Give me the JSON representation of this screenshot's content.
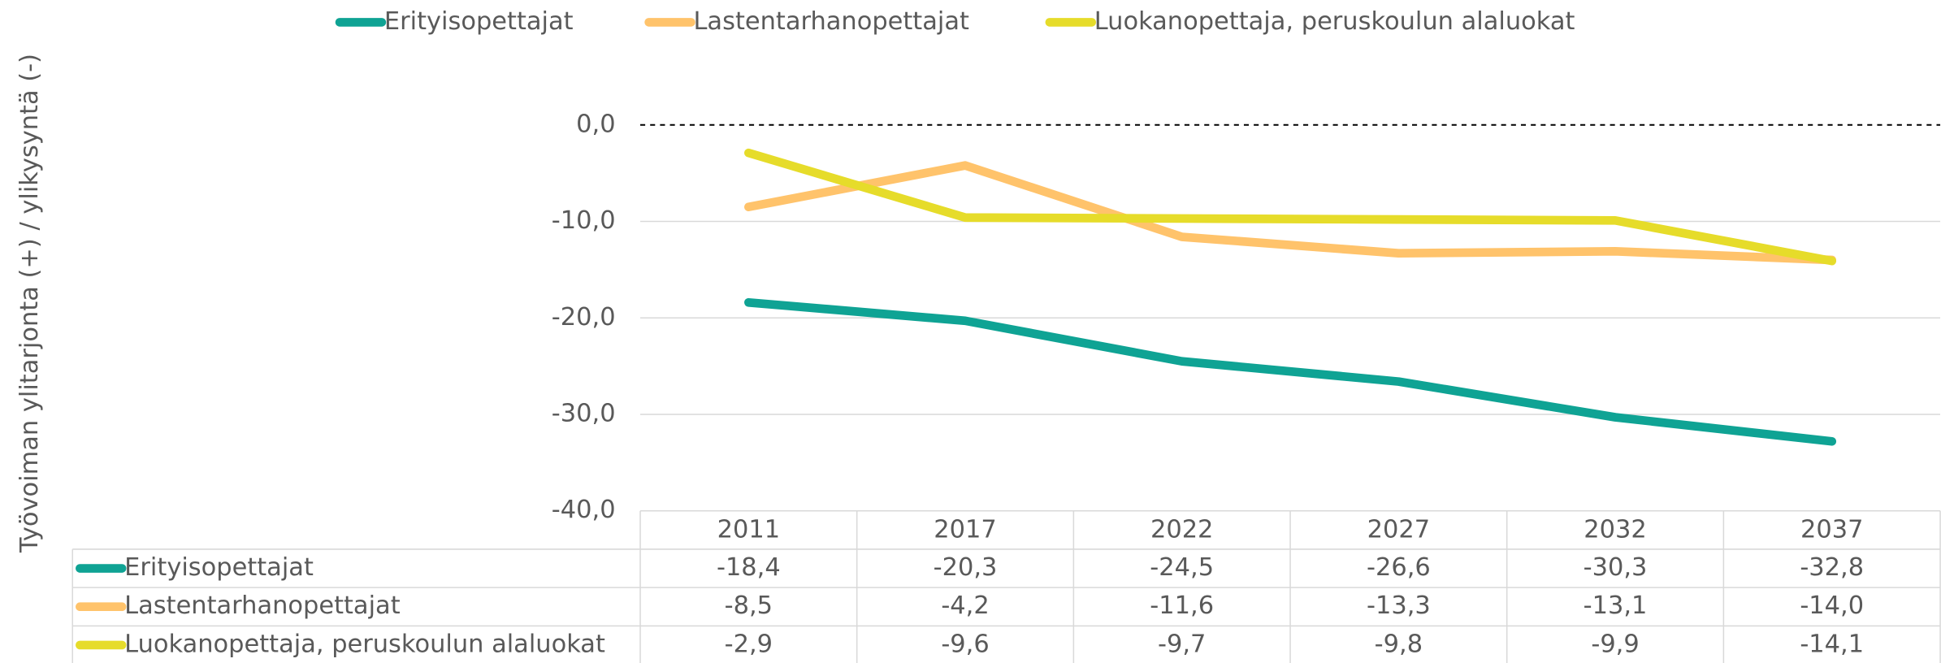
{
  "chart_data": {
    "type": "line",
    "y_axis_label": "Työvoiman ylitarjonta (+) / ylikysyntä (-)",
    "categories": [
      "2011",
      "2017",
      "2022",
      "2027",
      "2032",
      "2037"
    ],
    "series": [
      {
        "name": "Erityisopettajat",
        "color": "#0fa394",
        "values": [
          -18.4,
          -20.3,
          -24.5,
          -26.6,
          -30.3,
          -32.8
        ],
        "value_labels": [
          "-18,4",
          "-20,3",
          "-24,5",
          "-26,6",
          "-30,3",
          "-32,8"
        ]
      },
      {
        "name": "Lastentarhanopettajat",
        "color": "#ffc36b",
        "values": [
          -8.5,
          -4.2,
          -11.6,
          -13.3,
          -13.1,
          -14.0
        ],
        "value_labels": [
          "-8,5",
          "-4,2",
          "-11,6",
          "-13,3",
          "-13,1",
          "-14,0"
        ]
      },
      {
        "name": "Luokanopettaja, peruskoulun alaluokat",
        "color": "#e6dc2a",
        "values": [
          -2.9,
          -9.6,
          -9.7,
          -9.8,
          -9.9,
          -14.1
        ],
        "value_labels": [
          "-2,9",
          "-9,6",
          "-9,7",
          "-9,8",
          "-9,9",
          "-14,1"
        ]
      }
    ],
    "ylim": [
      -40,
      0
    ],
    "yticks": [
      {
        "value": 0,
        "label": "0,0"
      },
      {
        "value": -10,
        "label": "-10,0"
      },
      {
        "value": -20,
        "label": "-20,0"
      },
      {
        "value": -30,
        "label": "-30,0"
      },
      {
        "value": -40,
        "label": "-40,0"
      }
    ],
    "grid": true,
    "legend": "top"
  }
}
